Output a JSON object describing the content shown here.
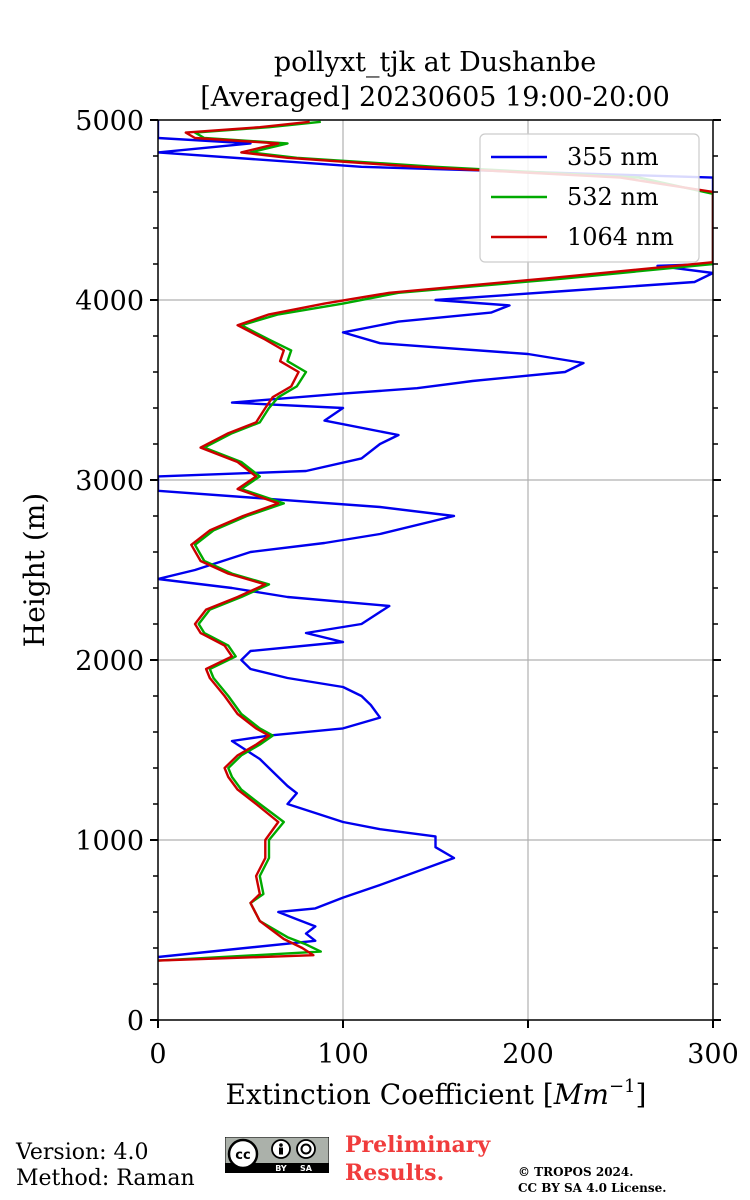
{
  "chart_data": {
    "type": "line",
    "title_line1": "pollyxt_tjk at Dushanbe",
    "title_line2": "[Averaged] 20230605 19:00-20:00",
    "xlabel_main": "Extinction Coefficient [",
    "xlabel_unit": "Mm",
    "xlabel_exp": "−1",
    "xlabel_close": "]",
    "ylabel": "Height (m)",
    "xlim": [
      0,
      300
    ],
    "ylim": [
      0,
      5000
    ],
    "xticks": [
      0,
      100,
      200,
      300
    ],
    "yticks": [
      0,
      1000,
      2000,
      3000,
      4000,
      5000
    ],
    "grid": true,
    "legend_position": "top-right",
    "series": [
      {
        "name": "355 nm",
        "color": "#0000ee",
        "points": [
          [
            0,
            350
          ],
          [
            85,
            440
          ],
          [
            80,
            480
          ],
          [
            85,
            520
          ],
          [
            75,
            560
          ],
          [
            65,
            600
          ],
          [
            85,
            620
          ],
          [
            100,
            680
          ],
          [
            120,
            750
          ],
          [
            160,
            900
          ],
          [
            150,
            960
          ],
          [
            150,
            1020
          ],
          [
            120,
            1060
          ],
          [
            100,
            1100
          ],
          [
            85,
            1150
          ],
          [
            70,
            1200
          ],
          [
            75,
            1260
          ],
          [
            70,
            1300
          ],
          [
            60,
            1400
          ],
          [
            55,
            1450
          ],
          [
            40,
            1550
          ],
          [
            60,
            1580
          ],
          [
            100,
            1620
          ],
          [
            120,
            1680
          ],
          [
            115,
            1750
          ],
          [
            110,
            1800
          ],
          [
            100,
            1850
          ],
          [
            70,
            1900
          ],
          [
            50,
            1950
          ],
          [
            45,
            2000
          ],
          [
            50,
            2050
          ],
          [
            100,
            2100
          ],
          [
            80,
            2150
          ],
          [
            110,
            2200
          ],
          [
            125,
            2300
          ],
          [
            70,
            2350
          ],
          [
            40,
            2400
          ],
          [
            0,
            2450
          ],
          [
            20,
            2500
          ],
          [
            50,
            2600
          ],
          [
            90,
            2650
          ],
          [
            120,
            2700
          ],
          [
            160,
            2800
          ],
          [
            120,
            2850
          ],
          [
            0,
            2940
          ],
          [
            0,
            3020
          ],
          [
            80,
            3050
          ],
          [
            110,
            3120
          ],
          [
            120,
            3200
          ],
          [
            130,
            3250
          ],
          [
            90,
            3330
          ],
          [
            100,
            3400
          ],
          [
            40,
            3430
          ],
          [
            100,
            3480
          ],
          [
            140,
            3510
          ],
          [
            170,
            3550
          ],
          [
            220,
            3600
          ],
          [
            230,
            3650
          ],
          [
            200,
            3700
          ],
          [
            120,
            3760
          ],
          [
            100,
            3820
          ],
          [
            130,
            3880
          ],
          [
            180,
            3930
          ],
          [
            190,
            3970
          ],
          [
            150,
            4000
          ],
          [
            220,
            4050
          ],
          [
            290,
            4100
          ],
          [
            300,
            4150
          ],
          [
            270,
            4190
          ],
          [
            300,
            4200
          ],
          [
            300,
            4600
          ],
          [
            300,
            4680
          ],
          [
            110,
            4740
          ],
          [
            0,
            4820
          ],
          [
            50,
            4870
          ],
          [
            0,
            4900
          ],
          [
            0,
            5000
          ]
        ]
      },
      {
        "name": "532 nm",
        "color": "#00aa00",
        "points": [
          [
            0,
            330
          ],
          [
            88,
            380
          ],
          [
            80,
            420
          ],
          [
            70,
            460
          ],
          [
            55,
            550
          ],
          [
            50,
            650
          ],
          [
            57,
            700
          ],
          [
            55,
            800
          ],
          [
            60,
            900
          ],
          [
            60,
            1000
          ],
          [
            68,
            1100
          ],
          [
            55,
            1200
          ],
          [
            45,
            1280
          ],
          [
            40,
            1350
          ],
          [
            38,
            1400
          ],
          [
            45,
            1470
          ],
          [
            55,
            1530
          ],
          [
            62,
            1580
          ],
          [
            55,
            1620
          ],
          [
            45,
            1700
          ],
          [
            38,
            1800
          ],
          [
            30,
            1900
          ],
          [
            28,
            1950
          ],
          [
            42,
            2020
          ],
          [
            38,
            2080
          ],
          [
            25,
            2150
          ],
          [
            22,
            2200
          ],
          [
            28,
            2280
          ],
          [
            45,
            2350
          ],
          [
            60,
            2420
          ],
          [
            40,
            2480
          ],
          [
            25,
            2550
          ],
          [
            20,
            2640
          ],
          [
            30,
            2720
          ],
          [
            48,
            2800
          ],
          [
            68,
            2870
          ],
          [
            45,
            2950
          ],
          [
            55,
            3020
          ],
          [
            45,
            3100
          ],
          [
            25,
            3180
          ],
          [
            40,
            3260
          ],
          [
            55,
            3320
          ],
          [
            60,
            3400
          ],
          [
            65,
            3460
          ],
          [
            75,
            3520
          ],
          [
            80,
            3600
          ],
          [
            70,
            3660
          ],
          [
            72,
            3720
          ],
          [
            60,
            3780
          ],
          [
            45,
            3860
          ],
          [
            65,
            3920
          ],
          [
            100,
            3980
          ],
          [
            130,
            4040
          ],
          [
            220,
            4120
          ],
          [
            300,
            4200
          ],
          [
            300,
            4590
          ],
          [
            260,
            4680
          ],
          [
            150,
            4740
          ],
          [
            75,
            4790
          ],
          [
            50,
            4820
          ],
          [
            70,
            4870
          ],
          [
            25,
            4900
          ],
          [
            20,
            4930
          ],
          [
            60,
            4960
          ],
          [
            88,
            4990
          ]
        ]
      },
      {
        "name": "1064 nm",
        "color": "#cc0000",
        "points": [
          [
            0,
            330
          ],
          [
            84,
            360
          ],
          [
            78,
            400
          ],
          [
            68,
            450
          ],
          [
            55,
            550
          ],
          [
            50,
            650
          ],
          [
            55,
            700
          ],
          [
            53,
            800
          ],
          [
            58,
            900
          ],
          [
            58,
            1000
          ],
          [
            65,
            1100
          ],
          [
            53,
            1200
          ],
          [
            43,
            1280
          ],
          [
            38,
            1350
          ],
          [
            36,
            1400
          ],
          [
            43,
            1470
          ],
          [
            53,
            1530
          ],
          [
            60,
            1580
          ],
          [
            53,
            1620
          ],
          [
            43,
            1700
          ],
          [
            36,
            1800
          ],
          [
            28,
            1900
          ],
          [
            26,
            1950
          ],
          [
            40,
            2020
          ],
          [
            36,
            2080
          ],
          [
            23,
            2150
          ],
          [
            20,
            2200
          ],
          [
            26,
            2280
          ],
          [
            43,
            2350
          ],
          [
            58,
            2420
          ],
          [
            38,
            2480
          ],
          [
            23,
            2550
          ],
          [
            18,
            2640
          ],
          [
            28,
            2720
          ],
          [
            46,
            2800
          ],
          [
            65,
            2870
          ],
          [
            43,
            2950
          ],
          [
            53,
            3020
          ],
          [
            43,
            3100
          ],
          [
            23,
            3180
          ],
          [
            38,
            3260
          ],
          [
            53,
            3320
          ],
          [
            58,
            3400
          ],
          [
            62,
            3460
          ],
          [
            72,
            3520
          ],
          [
            76,
            3600
          ],
          [
            66,
            3660
          ],
          [
            68,
            3720
          ],
          [
            58,
            3780
          ],
          [
            43,
            3860
          ],
          [
            60,
            3920
          ],
          [
            90,
            3980
          ],
          [
            125,
            4040
          ],
          [
            210,
            4120
          ],
          [
            300,
            4210
          ],
          [
            300,
            4600
          ],
          [
            250,
            4680
          ],
          [
            140,
            4740
          ],
          [
            70,
            4790
          ],
          [
            45,
            4820
          ],
          [
            65,
            4870
          ],
          [
            20,
            4900
          ],
          [
            15,
            4930
          ],
          [
            55,
            4960
          ],
          [
            82,
            4990
          ]
        ]
      }
    ]
  },
  "footer": {
    "version_line": "Version: 4.0",
    "method_line": "Method: Raman",
    "cc_label": "cc",
    "cc_by": "BY",
    "cc_sa": "SA",
    "preliminary_line1": "Preliminary",
    "preliminary_line2": "Results.",
    "copyright_line1": "© TROPOS 2024.",
    "copyright_line2": "CC BY SA 4.0 License."
  }
}
